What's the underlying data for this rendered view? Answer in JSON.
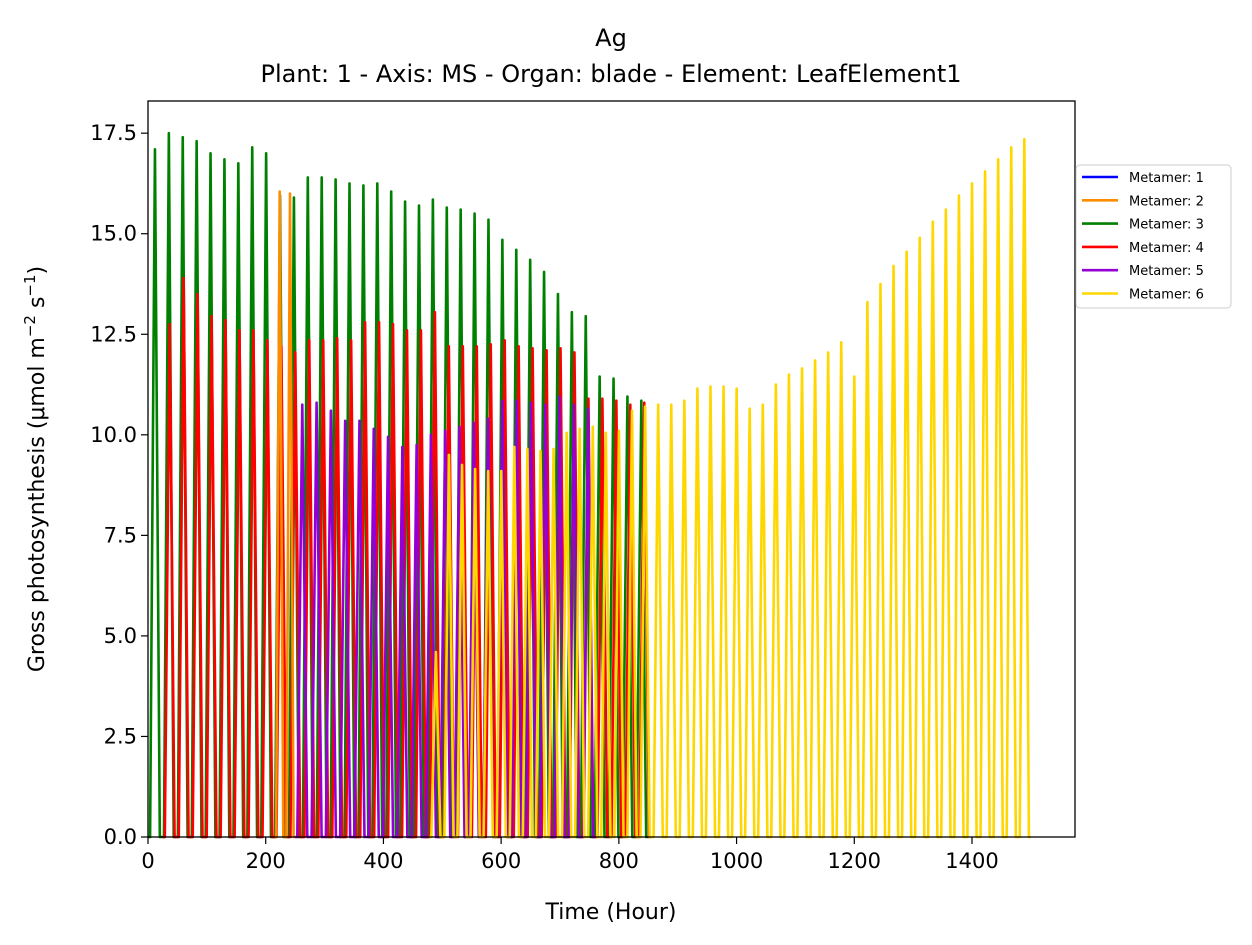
{
  "chart_data": {
    "type": "line",
    "title": "Ag",
    "subtitle": "Plant: 1 - Axis: MS - Organ: blade - Element: LeafElement1",
    "xlabel": "Time (Hour)",
    "ylabel_prefix": "Gross photosynthesis (μmol m",
    "ylabel_sup1": "−2",
    "ylabel_mid": " s",
    "ylabel_sup2": "−1",
    "ylabel_suffix": ")",
    "xlim": [
      0,
      1575
    ],
    "ylim": [
      0,
      18.3
    ],
    "xticks": [
      0,
      200,
      400,
      600,
      800,
      1000,
      1200,
      1400
    ],
    "xtick_labels": [
      "0",
      "200",
      "400",
      "600",
      "800",
      "1000",
      "1200",
      "1400"
    ],
    "yticks": [
      0,
      2.5,
      5,
      7.5,
      10,
      12.5,
      15,
      17.5
    ],
    "ytick_labels": [
      "0.0",
      "2.5",
      "5.0",
      "7.5",
      "10.0",
      "12.5",
      "15.0",
      "17.5"
    ],
    "grid": false,
    "legend_position": "outside-right-top",
    "series": [
      {
        "name": "Metamer: 1",
        "color": "#0000ff",
        "start": 0,
        "end": 0,
        "peaks": []
      },
      {
        "name": "Metamer: 2",
        "color": "#ff8c00",
        "start": 215,
        "end": 250,
        "peaks": [
          16.05,
          16.0
        ]
      },
      {
        "name": "Metamer: 3",
        "color": "#008000",
        "start": 0,
        "end": 850,
        "peaks": [
          17.1,
          17.5,
          17.4,
          17.3,
          17.0,
          16.85,
          16.75,
          17.15,
          17.0,
          15.95,
          15.9,
          16.4,
          16.4,
          16.35,
          16.25,
          16.2,
          16.25,
          16.05,
          15.8,
          15.7,
          15.85,
          15.65,
          15.6,
          15.5,
          15.35,
          14.85,
          14.6,
          14.35,
          14.05,
          13.5,
          13.05,
          12.95,
          11.45,
          11.4,
          10.95,
          10.85
        ]
      },
      {
        "name": "Metamer: 4",
        "color": "#ff0000",
        "start": 25,
        "end": 855,
        "peaks": [
          12.75,
          13.9,
          13.5,
          12.95,
          12.85,
          12.6,
          12.6,
          12.35,
          12.2,
          12.05,
          12.35,
          12.35,
          12.4,
          12.35,
          12.8,
          12.8,
          12.75,
          12.6,
          12.6,
          13.05,
          12.2,
          12.2,
          12.2,
          12.25,
          12.35,
          12.2,
          12.15,
          12.1,
          12.15,
          12.05,
          10.9,
          10.9,
          10.85,
          10.75,
          10.8
        ]
      },
      {
        "name": "Metamer: 5",
        "color": "#9400d3",
        "start": 250,
        "end": 760,
        "peaks": [
          10.75,
          10.8,
          10.6,
          10.35,
          10.35,
          10.15,
          9.95,
          9.7,
          9.75,
          10.0,
          10.1,
          10.2,
          10.3,
          10.4,
          10.85,
          10.85,
          10.8,
          10.75,
          10.95,
          10.75,
          10.65
        ]
      },
      {
        "name": "Metamer: 6",
        "color": "#ffd700",
        "start": 478,
        "end": 1500,
        "peaks": [
          4.6,
          9.5,
          9.25,
          9.15,
          9.1,
          9.1,
          9.7,
          9.65,
          9.6,
          9.65,
          10.05,
          10.15,
          10.2,
          10.05,
          10.1,
          10.6,
          10.7,
          10.75,
          10.75,
          10.85,
          11.15,
          11.2,
          11.2,
          11.15,
          10.65,
          10.75,
          11.25,
          11.5,
          11.65,
          11.85,
          12.05,
          12.3,
          11.45,
          13.3,
          13.75,
          14.2,
          14.55,
          14.9,
          15.3,
          15.6,
          15.95,
          16.25,
          16.55,
          16.85,
          17.15,
          17.35
        ]
      }
    ]
  }
}
